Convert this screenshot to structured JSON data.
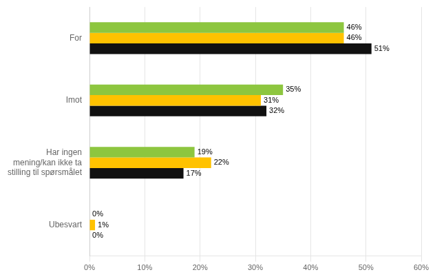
{
  "chart_data": {
    "type": "bar",
    "orientation": "horizontal",
    "categories": [
      "For",
      "Imot",
      "Har ingen\nmening/kan ikke ta\nstilling til spørsmålet",
      "Ubesvart"
    ],
    "series": [
      {
        "color": "#8DC63F",
        "values": [
          46,
          35,
          19,
          0
        ],
        "value_labels": [
          "46%",
          "35%",
          "19%",
          "0%"
        ]
      },
      {
        "color": "#FFC200",
        "values": [
          46,
          31,
          22,
          1
        ],
        "value_labels": [
          "46%",
          "31%",
          "22%",
          "1%"
        ]
      },
      {
        "color": "#111111",
        "values": [
          51,
          32,
          17,
          0
        ],
        "value_labels": [
          "51%",
          "32%",
          "17%",
          "0%"
        ]
      }
    ],
    "xlim": [
      0,
      60
    ],
    "xticks": [
      {
        "value": 0,
        "label": "0%"
      },
      {
        "value": 10,
        "label": "10%"
      },
      {
        "value": 20,
        "label": "20%"
      },
      {
        "value": 30,
        "label": "30%"
      },
      {
        "value": 40,
        "label": "40%"
      },
      {
        "value": 50,
        "label": "50%"
      },
      {
        "value": 60,
        "label": "60%"
      }
    ],
    "grid": "x",
    "data_labels": true
  }
}
